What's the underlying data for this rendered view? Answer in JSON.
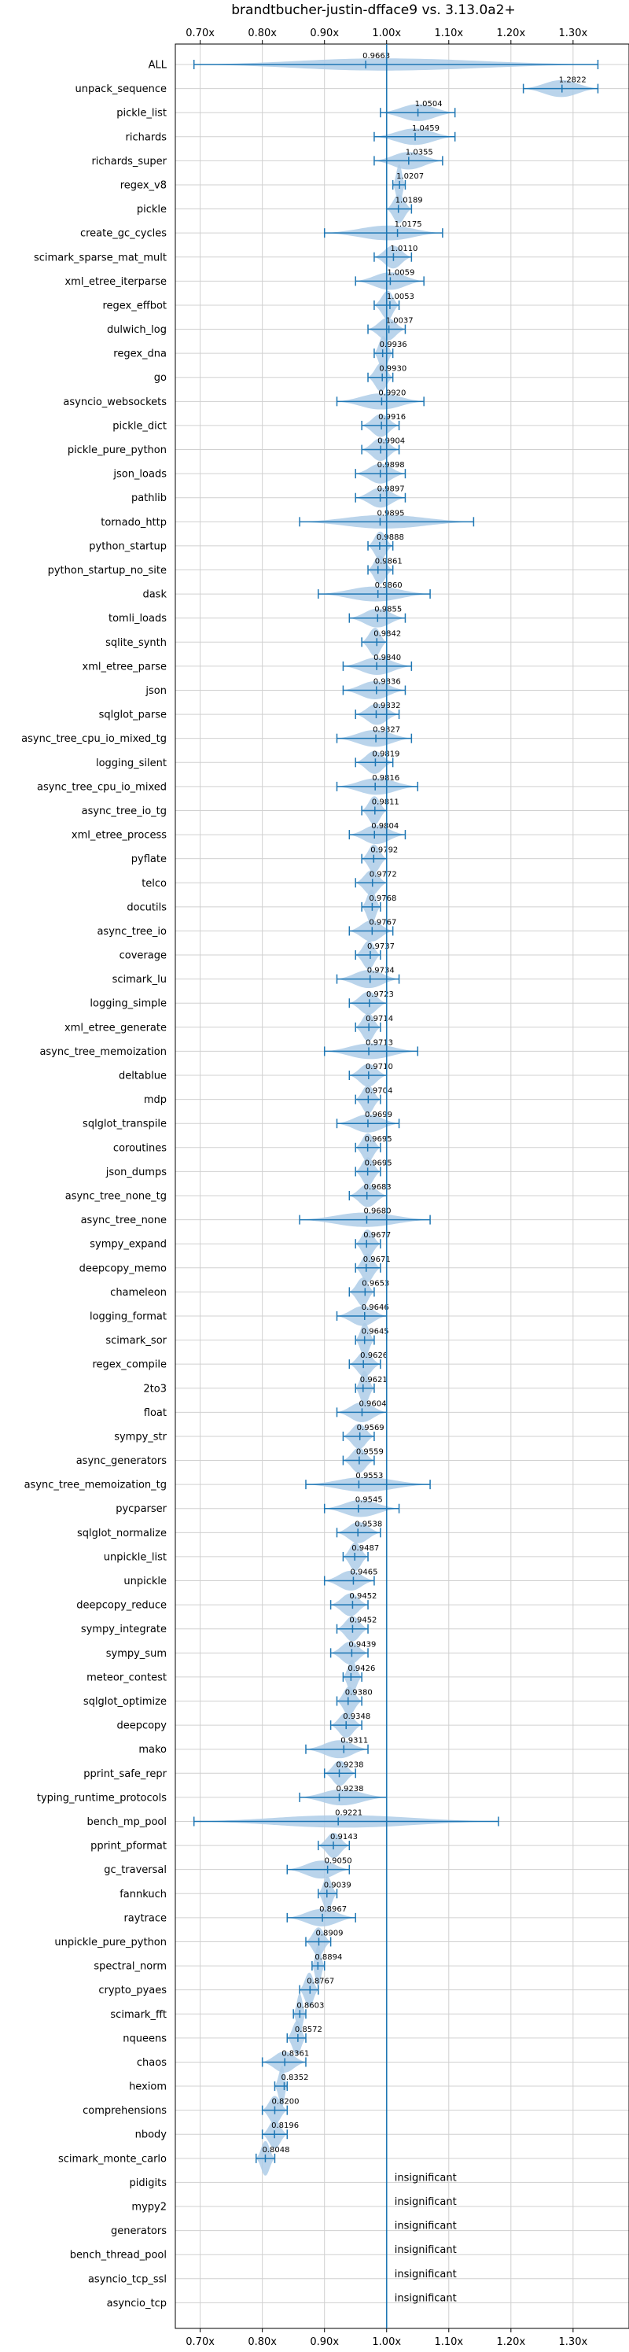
{
  "chart_data": {
    "type": "violin",
    "title": "brandtbucher-justin-dfface9 vs. 3.13.0a2+",
    "xlim": [
      0.66,
      1.39
    ],
    "reference_line": 1.0,
    "x_ticks": [
      "0.70x",
      "0.80x",
      "0.90x",
      "1.00x",
      "1.10x",
      "1.20x",
      "1.30x"
    ],
    "x_tick_values": [
      0.7,
      0.8,
      0.9,
      1.0,
      1.1,
      1.2,
      1.3
    ],
    "grid": true,
    "colors": {
      "violin": "#aecde8",
      "line": "#1f77b4",
      "grid": "#d0d0d0"
    },
    "insignificant_label": "insignificant",
    "benchmarks": [
      {
        "name": "ALL",
        "value": 0.9663,
        "label": "0.9663",
        "min": 0.69,
        "max": 1.34
      },
      {
        "name": "unpack_sequence",
        "value": 1.2822,
        "label": "1.2822",
        "min": 1.22,
        "max": 1.34
      },
      {
        "name": "pickle_list",
        "value": 1.0504,
        "label": "1.0504",
        "min": 0.99,
        "max": 1.11
      },
      {
        "name": "richards",
        "value": 1.0459,
        "label": "1.0459",
        "min": 0.98,
        "max": 1.11
      },
      {
        "name": "richards_super",
        "value": 1.0355,
        "label": "1.0355",
        "min": 0.98,
        "max": 1.09
      },
      {
        "name": "regex_v8",
        "value": 1.0207,
        "label": "1.0207",
        "min": 1.01,
        "max": 1.03
      },
      {
        "name": "pickle",
        "value": 1.0189,
        "label": "1.0189",
        "min": 1.0,
        "max": 1.04
      },
      {
        "name": "create_gc_cycles",
        "value": 1.0175,
        "label": "1.0175",
        "min": 0.9,
        "max": 1.09
      },
      {
        "name": "scimark_sparse_mat_mult",
        "value": 1.011,
        "label": "1.0110",
        "min": 0.98,
        "max": 1.04
      },
      {
        "name": "xml_etree_iterparse",
        "value": 1.0059,
        "label": "1.0059",
        "min": 0.95,
        "max": 1.06
      },
      {
        "name": "regex_effbot",
        "value": 1.0053,
        "label": "1.0053",
        "min": 0.98,
        "max": 1.02
      },
      {
        "name": "dulwich_log",
        "value": 1.0037,
        "label": "1.0037",
        "min": 0.97,
        "max": 1.03
      },
      {
        "name": "regex_dna",
        "value": 0.9936,
        "label": "0.9936",
        "min": 0.98,
        "max": 1.01
      },
      {
        "name": "go",
        "value": 0.993,
        "label": "0.9930",
        "min": 0.97,
        "max": 1.01
      },
      {
        "name": "asyncio_websockets",
        "value": 0.992,
        "label": "0.9920",
        "min": 0.92,
        "max": 1.06
      },
      {
        "name": "pickle_dict",
        "value": 0.9916,
        "label": "0.9916",
        "min": 0.96,
        "max": 1.02
      },
      {
        "name": "pickle_pure_python",
        "value": 0.9904,
        "label": "0.9904",
        "min": 0.96,
        "max": 1.02
      },
      {
        "name": "json_loads",
        "value": 0.9898,
        "label": "0.9898",
        "min": 0.95,
        "max": 1.03
      },
      {
        "name": "pathlib",
        "value": 0.9897,
        "label": "0.9897",
        "min": 0.95,
        "max": 1.03
      },
      {
        "name": "tornado_http",
        "value": 0.9895,
        "label": "0.9895",
        "min": 0.86,
        "max": 1.14
      },
      {
        "name": "python_startup",
        "value": 0.9888,
        "label": "0.9888",
        "min": 0.97,
        "max": 1.01
      },
      {
        "name": "python_startup_no_site",
        "value": 0.9861,
        "label": "0.9861",
        "min": 0.97,
        "max": 1.01
      },
      {
        "name": "dask",
        "value": 0.986,
        "label": "0.9860",
        "min": 0.89,
        "max": 1.07
      },
      {
        "name": "tomli_loads",
        "value": 0.9855,
        "label": "0.9855",
        "min": 0.94,
        "max": 1.03
      },
      {
        "name": "sqlite_synth",
        "value": 0.9842,
        "label": "0.9842",
        "min": 0.96,
        "max": 1.0
      },
      {
        "name": "xml_etree_parse",
        "value": 0.984,
        "label": "0.9840",
        "min": 0.93,
        "max": 1.04
      },
      {
        "name": "json",
        "value": 0.9836,
        "label": "0.9836",
        "min": 0.93,
        "max": 1.03
      },
      {
        "name": "sqlglot_parse",
        "value": 0.9832,
        "label": "0.9832",
        "min": 0.95,
        "max": 1.02
      },
      {
        "name": "async_tree_cpu_io_mixed_tg",
        "value": 0.9827,
        "label": "0.9827",
        "min": 0.92,
        "max": 1.04
      },
      {
        "name": "logging_silent",
        "value": 0.9819,
        "label": "0.9819",
        "min": 0.95,
        "max": 1.01
      },
      {
        "name": "async_tree_cpu_io_mixed",
        "value": 0.9816,
        "label": "0.9816",
        "min": 0.92,
        "max": 1.05
      },
      {
        "name": "async_tree_io_tg",
        "value": 0.9811,
        "label": "0.9811",
        "min": 0.96,
        "max": 1.0
      },
      {
        "name": "xml_etree_process",
        "value": 0.9804,
        "label": "0.9804",
        "min": 0.94,
        "max": 1.03
      },
      {
        "name": "pyflate",
        "value": 0.9792,
        "label": "0.9792",
        "min": 0.96,
        "max": 1.0
      },
      {
        "name": "telco",
        "value": 0.9772,
        "label": "0.9772",
        "min": 0.95,
        "max": 1.0
      },
      {
        "name": "docutils",
        "value": 0.9768,
        "label": "0.9768",
        "min": 0.96,
        "max": 0.99
      },
      {
        "name": "async_tree_io",
        "value": 0.9767,
        "label": "0.9767",
        "min": 0.94,
        "max": 1.01
      },
      {
        "name": "coverage",
        "value": 0.9737,
        "label": "0.9737",
        "min": 0.95,
        "max": 0.99
      },
      {
        "name": "scimark_lu",
        "value": 0.9734,
        "label": "0.9734",
        "min": 0.92,
        "max": 1.02
      },
      {
        "name": "logging_simple",
        "value": 0.9723,
        "label": "0.9723",
        "min": 0.94,
        "max": 1.0
      },
      {
        "name": "xml_etree_generate",
        "value": 0.9714,
        "label": "0.9714",
        "min": 0.95,
        "max": 0.99
      },
      {
        "name": "async_tree_memoization",
        "value": 0.9713,
        "label": "0.9713",
        "min": 0.9,
        "max": 1.05
      },
      {
        "name": "deltablue",
        "value": 0.971,
        "label": "0.9710",
        "min": 0.94,
        "max": 1.0
      },
      {
        "name": "mdp",
        "value": 0.9704,
        "label": "0.9704",
        "min": 0.95,
        "max": 0.99
      },
      {
        "name": "sqlglot_transpile",
        "value": 0.9699,
        "label": "0.9699",
        "min": 0.92,
        "max": 1.02
      },
      {
        "name": "coroutines",
        "value": 0.9695,
        "label": "0.9695",
        "min": 0.95,
        "max": 0.99
      },
      {
        "name": "json_dumps",
        "value": 0.9695,
        "label": "0.9695",
        "min": 0.95,
        "max": 0.99
      },
      {
        "name": "async_tree_none_tg",
        "value": 0.9683,
        "label": "0.9683",
        "min": 0.94,
        "max": 1.0
      },
      {
        "name": "async_tree_none",
        "value": 0.968,
        "label": "0.9680",
        "min": 0.86,
        "max": 1.07
      },
      {
        "name": "sympy_expand",
        "value": 0.9677,
        "label": "0.9677",
        "min": 0.95,
        "max": 0.99
      },
      {
        "name": "deepcopy_memo",
        "value": 0.9671,
        "label": "0.9671",
        "min": 0.95,
        "max": 0.99
      },
      {
        "name": "chameleon",
        "value": 0.9653,
        "label": "0.9653",
        "min": 0.94,
        "max": 0.98
      },
      {
        "name": "logging_format",
        "value": 0.9646,
        "label": "0.9646",
        "min": 0.92,
        "max": 1.0
      },
      {
        "name": "scimark_sor",
        "value": 0.9645,
        "label": "0.9645",
        "min": 0.95,
        "max": 0.98
      },
      {
        "name": "regex_compile",
        "value": 0.9626,
        "label": "0.9626",
        "min": 0.94,
        "max": 0.99
      },
      {
        "name": "2to3",
        "value": 0.9621,
        "label": "0.9621",
        "min": 0.95,
        "max": 0.98
      },
      {
        "name": "float",
        "value": 0.9604,
        "label": "0.9604",
        "min": 0.92,
        "max": 1.0
      },
      {
        "name": "sympy_str",
        "value": 0.9569,
        "label": "0.9569",
        "min": 0.93,
        "max": 0.98
      },
      {
        "name": "async_generators",
        "value": 0.9559,
        "label": "0.9559",
        "min": 0.93,
        "max": 0.98
      },
      {
        "name": "async_tree_memoization_tg",
        "value": 0.9553,
        "label": "0.9553",
        "min": 0.87,
        "max": 1.07
      },
      {
        "name": "pycparser",
        "value": 0.9545,
        "label": "0.9545",
        "min": 0.9,
        "max": 1.02
      },
      {
        "name": "sqlglot_normalize",
        "value": 0.9538,
        "label": "0.9538",
        "min": 0.92,
        "max": 0.99
      },
      {
        "name": "unpickle_list",
        "value": 0.9487,
        "label": "0.9487",
        "min": 0.93,
        "max": 0.97
      },
      {
        "name": "unpickle",
        "value": 0.9465,
        "label": "0.9465",
        "min": 0.9,
        "max": 0.98
      },
      {
        "name": "deepcopy_reduce",
        "value": 0.9452,
        "label": "0.9452",
        "min": 0.91,
        "max": 0.97
      },
      {
        "name": "sympy_integrate",
        "value": 0.9452,
        "label": "0.9452",
        "min": 0.92,
        "max": 0.97
      },
      {
        "name": "sympy_sum",
        "value": 0.9439,
        "label": "0.9439",
        "min": 0.91,
        "max": 0.97
      },
      {
        "name": "meteor_contest",
        "value": 0.9426,
        "label": "0.9426",
        "min": 0.93,
        "max": 0.96
      },
      {
        "name": "sqlglot_optimize",
        "value": 0.938,
        "label": "0.9380",
        "min": 0.92,
        "max": 0.96
      },
      {
        "name": "deepcopy",
        "value": 0.9348,
        "label": "0.9348",
        "min": 0.91,
        "max": 0.96
      },
      {
        "name": "mako",
        "value": 0.9311,
        "label": "0.9311",
        "min": 0.87,
        "max": 0.97
      },
      {
        "name": "pprint_safe_repr",
        "value": 0.9238,
        "label": "0.9238",
        "min": 0.9,
        "max": 0.95
      },
      {
        "name": "typing_runtime_protocols",
        "value": 0.9238,
        "label": "0.9238",
        "min": 0.86,
        "max": 1.0
      },
      {
        "name": "bench_mp_pool",
        "value": 0.9221,
        "label": "0.9221",
        "min": 0.69,
        "max": 1.18
      },
      {
        "name": "pprint_pformat",
        "value": 0.9143,
        "label": "0.9143",
        "min": 0.89,
        "max": 0.94
      },
      {
        "name": "gc_traversal",
        "value": 0.905,
        "label": "0.9050",
        "min": 0.84,
        "max": 0.94
      },
      {
        "name": "fannkuch",
        "value": 0.9039,
        "label": "0.9039",
        "min": 0.89,
        "max": 0.92
      },
      {
        "name": "raytrace",
        "value": 0.8967,
        "label": "0.8967",
        "min": 0.84,
        "max": 0.95
      },
      {
        "name": "unpickle_pure_python",
        "value": 0.8909,
        "label": "0.8909",
        "min": 0.87,
        "max": 0.91
      },
      {
        "name": "spectral_norm",
        "value": 0.8894,
        "label": "0.8894",
        "min": 0.88,
        "max": 0.9
      },
      {
        "name": "crypto_pyaes",
        "value": 0.8767,
        "label": "0.8767",
        "min": 0.86,
        "max": 0.89
      },
      {
        "name": "scimark_fft",
        "value": 0.8603,
        "label": "0.8603",
        "min": 0.85,
        "max": 0.87
      },
      {
        "name": "nqueens",
        "value": 0.8572,
        "label": "0.8572",
        "min": 0.84,
        "max": 0.87
      },
      {
        "name": "chaos",
        "value": 0.8361,
        "label": "0.8361",
        "min": 0.8,
        "max": 0.87
      },
      {
        "name": "hexiom",
        "value": 0.8352,
        "label": "0.8352",
        "min": 0.82,
        "max": 0.84
      },
      {
        "name": "comprehensions",
        "value": 0.82,
        "label": "0.8200",
        "min": 0.8,
        "max": 0.84
      },
      {
        "name": "nbody",
        "value": 0.8196,
        "label": "0.8196",
        "min": 0.8,
        "max": 0.84
      },
      {
        "name": "scimark_monte_carlo",
        "value": 0.8048,
        "label": "0.8048",
        "min": 0.79,
        "max": 0.82
      },
      {
        "name": "pidigits",
        "insignificant": true
      },
      {
        "name": "mypy2",
        "insignificant": true
      },
      {
        "name": "generators",
        "insignificant": true
      },
      {
        "name": "bench_thread_pool",
        "insignificant": true
      },
      {
        "name": "asyncio_tcp_ssl",
        "insignificant": true
      },
      {
        "name": "asyncio_tcp",
        "insignificant": true
      }
    ]
  }
}
